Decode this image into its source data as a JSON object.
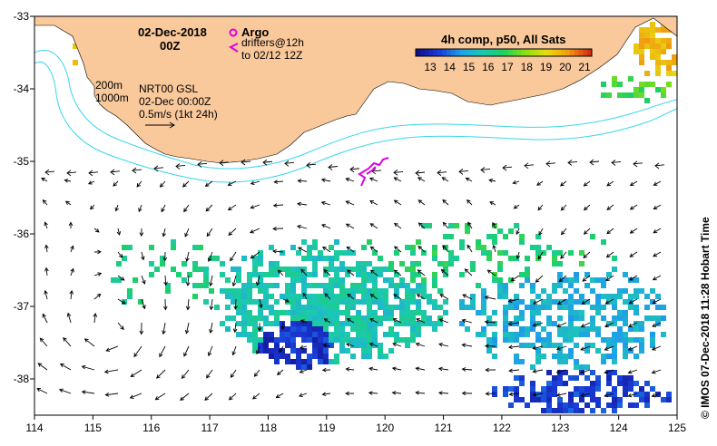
{
  "map": {
    "date": "02-Dec-2018",
    "hour": "00Z",
    "legend_argo": "Argo",
    "legend_drifters_1": "drifters@12h",
    "legend_drifters_2": "to 02/12 12Z",
    "colorbar_title": "4h comp, p50, All Sats",
    "colorbar_ticks": [
      "13",
      "14",
      "15",
      "16",
      "17",
      "18",
      "19",
      "20",
      "21"
    ],
    "contour_200": "200m",
    "contour_1000": "1000m",
    "product": "NRT00 GSL",
    "product_time": "02-Dec 00:00Z",
    "scale_label": "0.5m/s (1kt 24h)",
    "credit": "© IMOS 07-Dec-2018 11:28 Hobart Time",
    "x_ticks": [
      "114",
      "115",
      "116",
      "117",
      "118",
      "119",
      "120",
      "121",
      "122",
      "123",
      "124",
      "125"
    ],
    "y_ticks": [
      "-33",
      "-34",
      "-35",
      "-36",
      "-37",
      "-38"
    ],
    "colors": {
      "land": "#f9c89b",
      "shelf_contour": "#3ad6ea",
      "argo": "#e000e0",
      "drifter": "#e000e0",
      "sst_scale": [
        "#10108c",
        "#1a3cd8",
        "#1ea0e8",
        "#1cc8b4",
        "#1cd064",
        "#8ce010",
        "#e8dc10",
        "#f09c10",
        "#d03010"
      ]
    }
  }
}
